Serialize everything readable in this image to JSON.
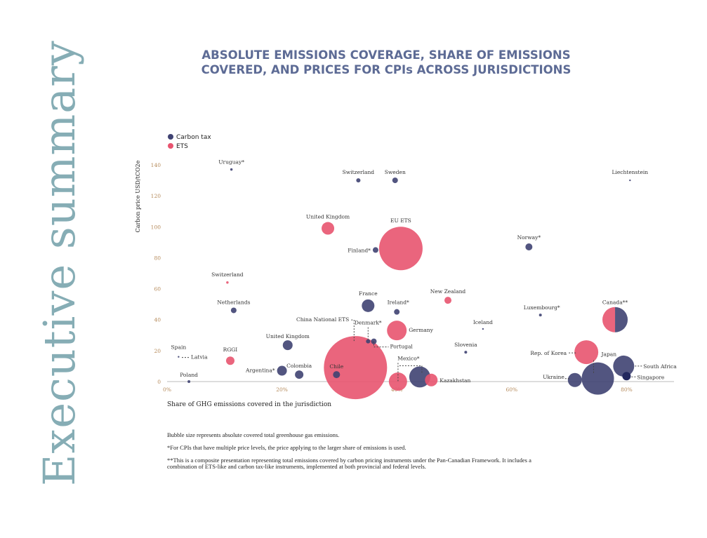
{
  "side_title": "Executive summary",
  "title_line1": "ABSOLUTE EMISSIONS COVERAGE, SHARE OF EMISSIONS",
  "title_line2": "COVERED, AND PRICES FOR CPIs ACROSS JURISDICTIONS",
  "notes": [
    "Bubble size represents absolute covered total greenhouse gas emissions.",
    "*For CPIs that have multiple price levels, the price applying to the larger share of emissions is used.",
    "**This is a composite presentation representing total emissions covered by carbon pricing instruments under the Pan-Canadian Framework. It includes a combination of ETS-like and carbon tax-like instruments, implemented at both provincial and federal levels."
  ],
  "colors": {
    "carbon_tax": "#3f4272",
    "ets": "#e8546f",
    "singapore": "#23285e",
    "axis": "#dddddd"
  },
  "chart_data": {
    "type": "scatter",
    "subtype": "bubble",
    "xlabel": "Share of GHG emissions covered in the jurisdiction",
    "ylabel": "Carbon price USD/tCO2e",
    "xlim": [
      0,
      88
    ],
    "ylim": [
      0,
      140
    ],
    "x_ticks": [
      "0%",
      "20%",
      "40%",
      "60%",
      "80%"
    ],
    "x_tick_values": [
      0,
      20,
      40,
      60,
      80
    ],
    "y_ticks": [
      "0",
      "20",
      "40",
      "60",
      "80",
      "100",
      "120",
      "140"
    ],
    "y_tick_values": [
      0,
      20,
      40,
      60,
      80,
      100,
      120,
      140
    ],
    "grid": false,
    "legend": {
      "placement": "top-left",
      "entries": [
        {
          "name": "Carbon tax",
          "type": "tax"
        },
        {
          "name": "ETS",
          "type": "ets"
        }
      ]
    },
    "points": [
      {
        "label": "Uruguay*",
        "type": "tax",
        "x": 11.2,
        "y": 137,
        "size": 3
      },
      {
        "label": "Switzerland",
        "type": "tax",
        "x": 33.3,
        "y": 130,
        "size": 9
      },
      {
        "label": "Sweden",
        "type": "tax",
        "x": 39.7,
        "y": 130,
        "size": 16
      },
      {
        "label": "Liechtenstein",
        "type": "tax",
        "x": 80.6,
        "y": 130,
        "size": 1
      },
      {
        "label": "United Kingdom",
        "type": "ets",
        "x": 28,
        "y": 99,
        "size": 81
      },
      {
        "label": "EU ETS",
        "type": "ets",
        "x": 40.7,
        "y": 86,
        "size": 961
      },
      {
        "label": "Finland*",
        "type": "tax",
        "x": 36.3,
        "y": 85,
        "size": 16
      },
      {
        "label": "Norway*",
        "type": "tax",
        "x": 63,
        "y": 87,
        "size": 25
      },
      {
        "label": "Switzerland",
        "type": "ets",
        "x": 10.5,
        "y": 64,
        "size": 3
      },
      {
        "label": "Netherlands",
        "type": "tax",
        "x": 11.6,
        "y": 46,
        "size": 16
      },
      {
        "label": "France",
        "type": "tax",
        "x": 35,
        "y": 49,
        "size": 81
      },
      {
        "label": "Ireland*",
        "type": "tax",
        "x": 40,
        "y": 45,
        "size": 16
      },
      {
        "label": "New Zealand",
        "type": "ets",
        "x": 48.9,
        "y": 52.5,
        "size": 25
      },
      {
        "label": "Iceland",
        "type": "tax",
        "x": 55,
        "y": 34,
        "size": 1
      },
      {
        "label": "Luxembourg*",
        "type": "tax",
        "x": 65,
        "y": 43,
        "size": 4
      },
      {
        "label": "Canada**",
        "type": "mixed",
        "x": 78,
        "y": 40,
        "size": 324
      },
      {
        "label": "China National ETS",
        "type": "ets",
        "x": 32.8,
        "y": 9,
        "size": 2025
      },
      {
        "label": "Denmark*",
        "type": "tax",
        "x": 35,
        "y": 26,
        "size": 9
      },
      {
        "label": "Portugal",
        "type": "tax",
        "x": 36,
        "y": 26,
        "size": 16
      },
      {
        "label": "Germany",
        "type": "ets",
        "x": 40,
        "y": 33,
        "size": 196
      },
      {
        "label": "United Kingdom",
        "type": "tax",
        "x": 21,
        "y": 23.5,
        "size": 49
      },
      {
        "label": "Spain",
        "type": "tax",
        "x": 2,
        "y": 16,
        "size": 1
      },
      {
        "label": "Latvia",
        "type": "tax",
        "x": 2.2,
        "y": 16.5,
        "size": 1
      },
      {
        "label": "RGGI",
        "type": "ets",
        "x": 11,
        "y": 13.5,
        "size": 36
      },
      {
        "label": "Argentina*",
        "type": "tax",
        "x": 20,
        "y": 7,
        "size": 49
      },
      {
        "label": "Colombia",
        "type": "tax",
        "x": 23,
        "y": 4.5,
        "size": 36
      },
      {
        "label": "Chile",
        "type": "tax",
        "x": 29.5,
        "y": 4.5,
        "size": 25
      },
      {
        "label": "Poland",
        "type": "tax",
        "x": 3.8,
        "y": 0,
        "size": 4
      },
      {
        "label": "Slovenia",
        "type": "tax",
        "x": 52,
        "y": 19,
        "size": 4
      },
      {
        "label": "",
        "type": "ets",
        "x": 40.2,
        "y": 0,
        "size": 169
      },
      {
        "label": "Mexico*",
        "type": "tax",
        "x": 44,
        "y": 3,
        "size": 225
      },
      {
        "label": "Kazakhstan",
        "type": "ets",
        "x": 46,
        "y": 1,
        "size": 81
      },
      {
        "label": "Rep. of Korea",
        "type": "ets",
        "x": 73,
        "y": 19,
        "size": 289
      },
      {
        "label": "Japan",
        "type": "tax",
        "x": 75,
        "y": 2,
        "size": 529
      },
      {
        "label": "South Africa",
        "type": "tax",
        "x": 79.5,
        "y": 10,
        "size": 225
      },
      {
        "label": "Singapore",
        "type": "singapore",
        "x": 80,
        "y": 3.5,
        "size": 36
      },
      {
        "label": "Ukraine",
        "type": "tax",
        "x": 71,
        "y": 1,
        "size": 100
      }
    ]
  }
}
